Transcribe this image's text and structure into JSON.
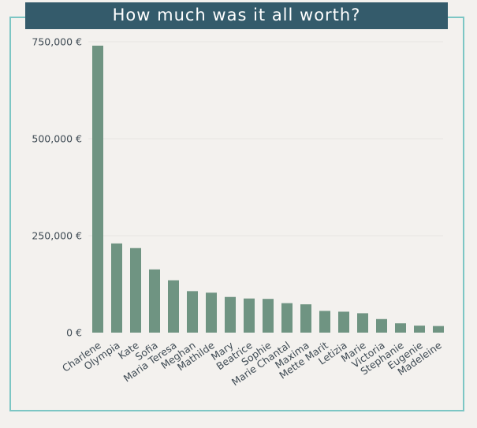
{
  "colors": {
    "background": "#f3f1ee",
    "title_bar": "#345b6b",
    "border": "#7cc6c4",
    "bar": "#6f9482",
    "text": "#3f4b54",
    "grid": "#e7e5e1"
  },
  "chart_data": {
    "type": "bar",
    "title": "How much was it all worth?",
    "xlabel": "",
    "ylabel": "",
    "ylim": [
      0,
      750000
    ],
    "yticks": [
      0,
      250000,
      500000,
      750000
    ],
    "ytick_labels": [
      "0 €",
      "250,000 €",
      "500,000 €",
      "750,000 €"
    ],
    "grid": true,
    "categories": [
      "Charlene",
      "Olympia",
      "Kate",
      "Sofia",
      "Maria Teresa",
      "Meghan",
      "Mathilde",
      "Mary",
      "Beatrice",
      "Sophie",
      "Marie Chantal",
      "Maxima",
      "Mette Marit",
      "Letizia",
      "Marie",
      "Victoria",
      "Stephanie",
      "Eugenie",
      "Madeleine"
    ],
    "values": [
      740000,
      230000,
      218000,
      163000,
      135000,
      107000,
      103000,
      92000,
      88000,
      87000,
      76000,
      73000,
      56000,
      54000,
      50000,
      35000,
      24000,
      18000,
      17000
    ]
  }
}
